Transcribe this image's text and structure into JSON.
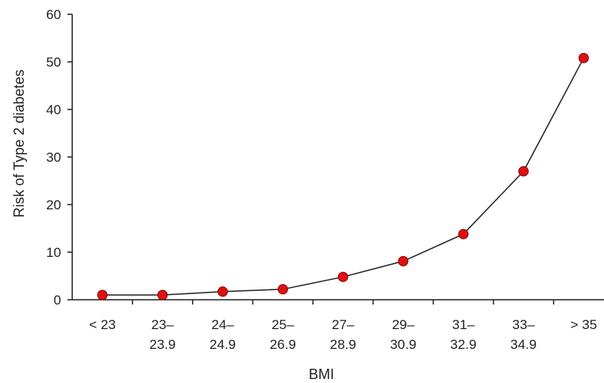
{
  "chart_data": {
    "type": "line",
    "xlabel": "BMI",
    "ylabel": "Risk of Type 2 diabetes",
    "ylim": [
      0,
      60
    ],
    "yticks": [
      "0",
      "10",
      "20",
      "30",
      "40",
      "50",
      "60"
    ],
    "categories": [
      [
        "< 23"
      ],
      [
        "23–",
        "23.9"
      ],
      [
        "24–",
        "24.9"
      ],
      [
        "25–",
        "26.9"
      ],
      [
        "27–",
        "28.9"
      ],
      [
        "29–",
        "30.9"
      ],
      [
        "31–",
        "32.9"
      ],
      [
        "33–",
        "34.9"
      ],
      [
        "> 35"
      ]
    ],
    "series": [
      {
        "values": [
          1.0,
          1.0,
          1.7,
          2.2,
          4.8,
          8.1,
          13.8,
          27.0,
          50.8
        ]
      }
    ],
    "grid": false,
    "colors": {
      "marker": "#dd1111",
      "marker_stroke": "#8a0000",
      "line": "#222222",
      "axis": "#222222"
    }
  }
}
